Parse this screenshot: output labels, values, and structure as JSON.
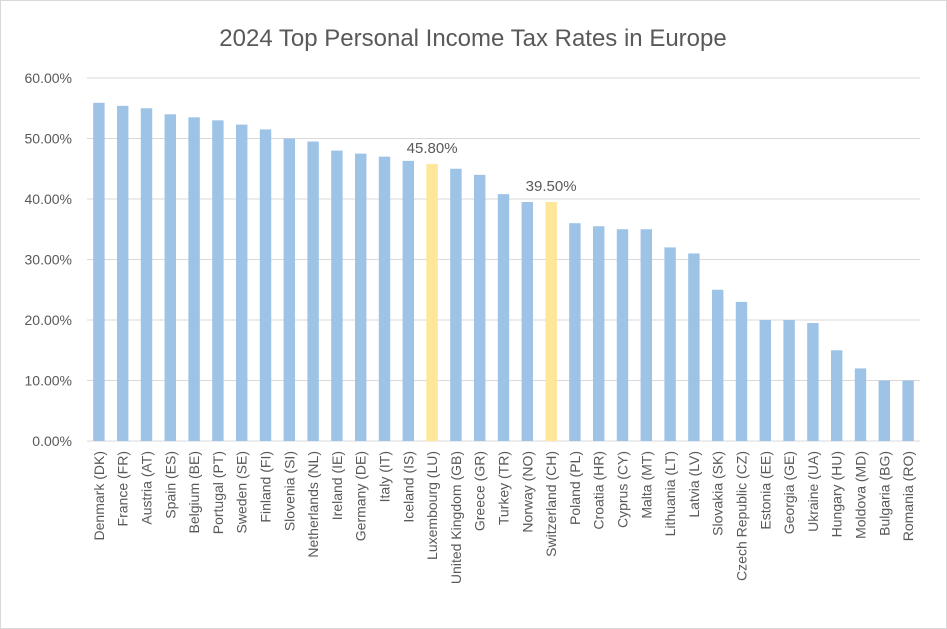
{
  "chart_data": {
    "type": "bar",
    "title": "2024 Top Personal Income Tax Rates in Europe",
    "xlabel": "",
    "ylabel": "",
    "ylim": [
      0,
      0.6
    ],
    "yticks": [
      "0.00%",
      "10.00%",
      "20.00%",
      "30.00%",
      "40.00%",
      "50.00%",
      "60.00%"
    ],
    "grid": true,
    "legend": "none",
    "categories": [
      "Denmark (DK)",
      "France (FR)",
      "Austria (AT)",
      "Spain (ES)",
      "Belgium (BE)",
      "Portugal (PT)",
      "Sweden (SE)",
      "Finland (FI)",
      "Slovenia (SI)",
      "Netherlands (NL)",
      "Ireland (IE)",
      "Germany (DE)",
      "Italy (IT)",
      "Iceland (IS)",
      "Luxembourg (LU)",
      "United Kingdom (GB)",
      "Greece (GR)",
      "Turkey (TR)",
      "Norway (NO)",
      "Switzerland (CH)",
      "Poland (PL)",
      "Croatia (HR)",
      "Cyprus (CY)",
      "Malta (MT)",
      "Lithuania (LT)",
      "Latvia (LV)",
      "Slovakia (SK)",
      "Czech Republic (CZ)",
      "Estonia (EE)",
      "Georgia (GE)",
      "Ukraine (UA)",
      "Hungary (HU)",
      "Moldova (MD)",
      "Bulgaria (BG)",
      "Romania (RO)"
    ],
    "values": [
      0.559,
      0.554,
      0.55,
      0.54,
      0.535,
      0.53,
      0.523,
      0.515,
      0.5,
      0.495,
      0.48,
      0.475,
      0.47,
      0.463,
      0.458,
      0.45,
      0.44,
      0.408,
      0.395,
      0.395,
      0.36,
      0.355,
      0.35,
      0.35,
      0.32,
      0.31,
      0.25,
      0.23,
      0.2,
      0.2,
      0.195,
      0.15,
      0.12,
      0.1,
      0.1
    ],
    "highlight": [
      "Luxembourg (LU)",
      "Switzerland (CH)"
    ],
    "annotations": [
      {
        "category": "Luxembourg (LU)",
        "label": "45.80%"
      },
      {
        "category": "Switzerland (CH)",
        "label": "39.50%"
      }
    ],
    "colors": {
      "bar": "#9dc3e6",
      "highlight": "#ffe699"
    }
  }
}
